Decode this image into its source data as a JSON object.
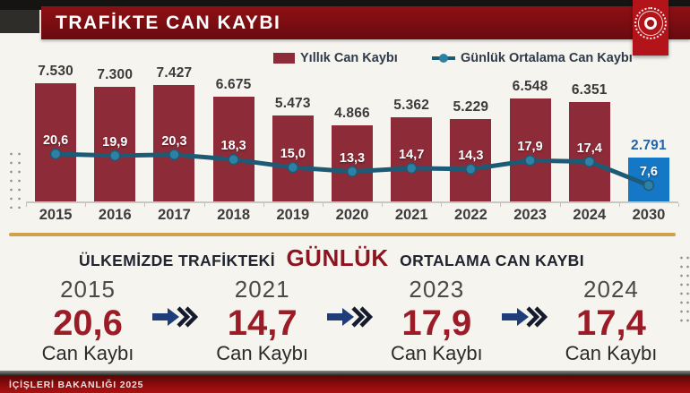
{
  "header": {
    "title": "TRAFİKTE CAN KAYBI"
  },
  "chart_data": {
    "type": "bar",
    "title": "TRAFİKTE CAN KAYBI",
    "categories": [
      "2015",
      "2016",
      "2017",
      "2018",
      "2019",
      "2020",
      "2021",
      "2022",
      "2023",
      "2024",
      "2030"
    ],
    "series": [
      {
        "name": "Yıllık Can Kaybı",
        "type": "bar",
        "values": [
          7530,
          7300,
          7427,
          6675,
          5473,
          4866,
          5362,
          5229,
          6548,
          6351,
          2791
        ],
        "labels": [
          "7.530",
          "7.300",
          "7.427",
          "6.675",
          "5.473",
          "4.866",
          "5.362",
          "5.229",
          "6.548",
          "6.351",
          "2.791"
        ],
        "color": "#8e2b38",
        "highlight_index": 10,
        "highlight_color": "#1478c6"
      },
      {
        "name": "Günlük Ortalama Can Kaybı",
        "type": "line",
        "values": [
          20.6,
          19.9,
          20.3,
          18.3,
          15.0,
          13.3,
          14.7,
          14.3,
          17.9,
          17.4,
          7.6
        ],
        "labels": [
          "20,6",
          "19,9",
          "20,3",
          "18,3",
          "15,0",
          "13,3",
          "14,7",
          "14,3",
          "17,9",
          "17,4",
          "7,6"
        ],
        "color": "#1d5a75",
        "marker_color": "#2e80a4"
      }
    ],
    "legend_position": "top",
    "grid": false,
    "ylim_bar": [
      0,
      8000
    ],
    "ylim_line": [
      0,
      25
    ]
  },
  "summary": {
    "heading": {
      "pre": "ÜLKEMİZDE TRAFİKTEKİ",
      "highlight": "GÜNLÜK",
      "post": "ORTALAMA CAN KAYBI"
    },
    "stats": [
      {
        "year": "2015",
        "value": "20,6",
        "label": "Can Kaybı"
      },
      {
        "year": "2021",
        "value": "14,7",
        "label": "Can Kaybı"
      },
      {
        "year": "2023",
        "value": "17,9",
        "label": "Can Kaybı"
      },
      {
        "year": "2024",
        "value": "17,4",
        "label": "Can Kaybı"
      }
    ]
  },
  "footer": {
    "text": "İÇİŞLERİ BAKANLIĞI 2025"
  },
  "colors": {
    "banner_red": "#7a0d11",
    "bar_maroon": "#8e2b38",
    "bar_blue": "#1478c6",
    "line_teal": "#1d5a75",
    "gold": "#cfa14b",
    "value_red": "#9b1b26",
    "arrow_navy": "#1f3d79",
    "background": "#f6f4ef"
  }
}
